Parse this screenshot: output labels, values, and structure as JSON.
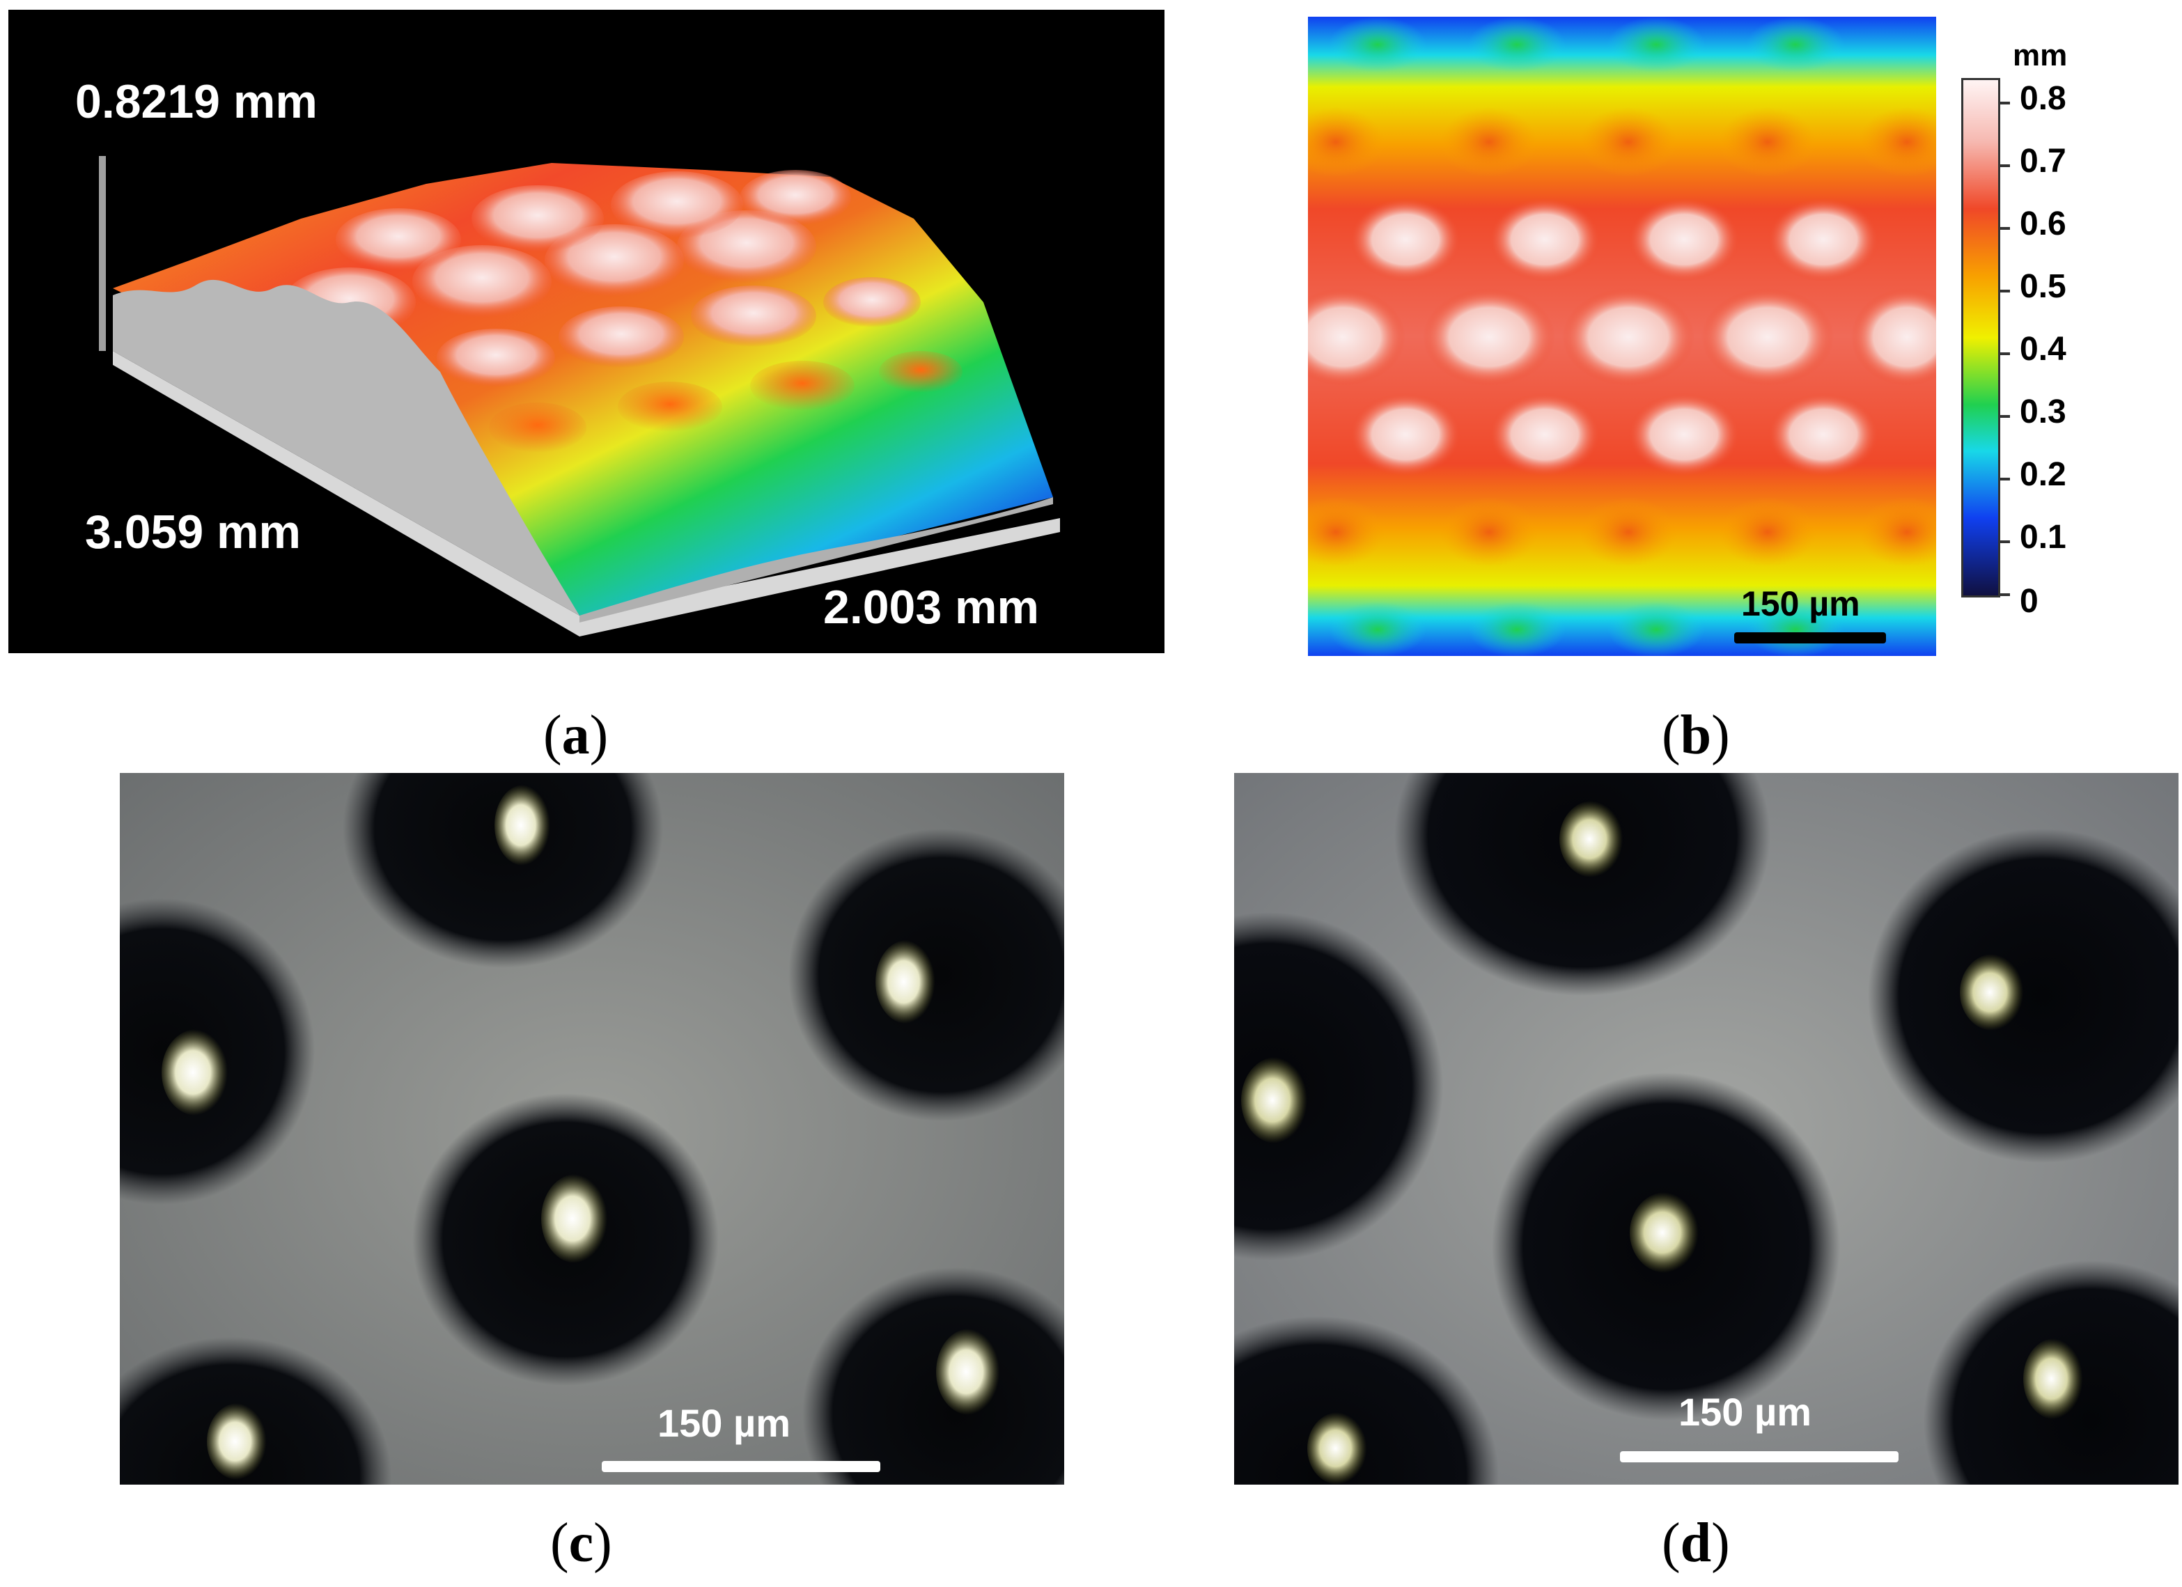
{
  "panels": {
    "a": {
      "caption": "a",
      "z_label": "0.8219 mm",
      "y_label": "3.059 mm",
      "x_label": "2.003 mm"
    },
    "b": {
      "caption": "b",
      "scalebar_label": "150 µm",
      "colorbar": {
        "unit": "mm",
        "ticks": [
          "0.8",
          "0.7",
          "0.6",
          "0.5",
          "0.4",
          "0.3",
          "0.2",
          "0.1",
          "0"
        ]
      }
    },
    "c": {
      "caption": "c",
      "scalebar_label": "150 µm"
    },
    "d": {
      "caption": "d",
      "scalebar_label": "150 µm"
    }
  },
  "colors": {
    "peak": "#f8e8e8",
    "high": "#f04828",
    "mid": "#f8b000",
    "yellow": "#e8f000",
    "green": "#20d050",
    "cyan": "#18d8e8",
    "blue": "#1040f0",
    "low": "#10104a",
    "background": "#000000"
  }
}
